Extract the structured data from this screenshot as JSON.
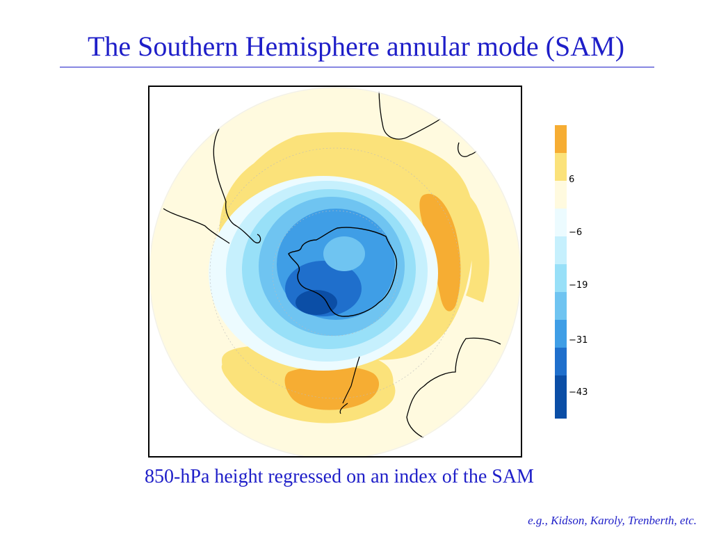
{
  "slide": {
    "title": "The Southern Hemisphere annular mode (SAM)",
    "caption": "850-hPa height regressed on an index of the SAM",
    "credit": "e.g., Kidson, Karoly, Trenberth, etc."
  },
  "map": {
    "projection": "south polar stereographic",
    "field": "850-hPa height regression",
    "colors": {
      "pos_high": "#f6ad33",
      "pos_mid": "#fbe27a",
      "pos_low": "#fffadf",
      "neg_1": "#ecfbff",
      "neg_2": "#c6f0fd",
      "neg_3": "#98e0f8",
      "neg_4": "#6fc4f1",
      "neg_5": "#3f9ee6",
      "neg_6": "#1f6fcc",
      "neg_7": "#0b4ea6",
      "land_outline": "#000000"
    }
  },
  "colorbar": {
    "colors": [
      "#f6ad33",
      "#fbe27a",
      "#fffadf",
      "#ecfbff",
      "#c6f0fd",
      "#98e0f8",
      "#6fc4f1",
      "#3f9ee6",
      "#1f6fcc",
      "#0b4ea6"
    ],
    "labels": [
      "6",
      "−6",
      "−19",
      "−31",
      "−43"
    ]
  }
}
